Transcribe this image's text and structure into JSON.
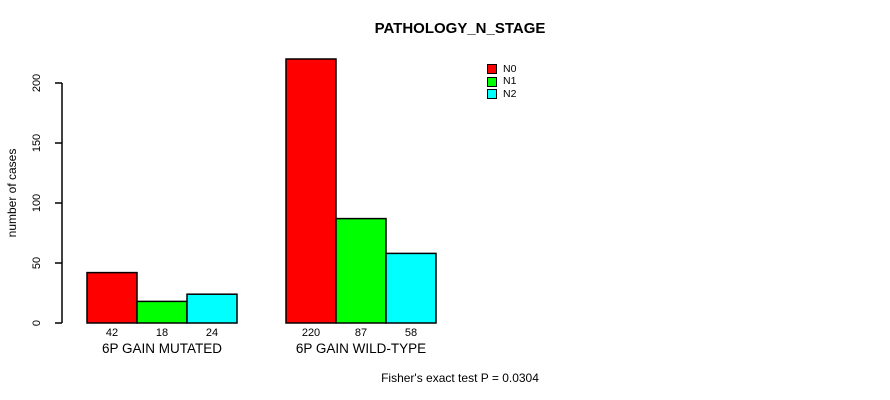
{
  "chart_data": {
    "type": "bar",
    "title": "PATHOLOGY_N_STAGE",
    "ylabel": "number of cases",
    "xlabel": "",
    "categories": [
      "6P GAIN MUTATED",
      "6P GAIN WILD-TYPE"
    ],
    "series": [
      {
        "name": "N0",
        "color": "#FF0000",
        "values": [
          42,
          220
        ]
      },
      {
        "name": "N1",
        "color": "#00FF00",
        "values": [
          18,
          87
        ]
      },
      {
        "name": "N2",
        "color": "#00FFFF",
        "values": [
          24,
          58
        ]
      }
    ],
    "bar_value_labels": [
      [
        42,
        18,
        24
      ],
      [
        220,
        87,
        58
      ]
    ],
    "yticks": [
      0,
      50,
      100,
      150,
      200
    ],
    "ylim": [
      0,
      220
    ],
    "grid": false,
    "legend_position": "top-right",
    "legend_entries": [
      "N0",
      "N1",
      "N2"
    ],
    "annotation": "Fisher's exact test P = 0.0304"
  },
  "colors": {
    "axis": "#000000",
    "text": "#000000",
    "background": "#FFFFFF",
    "n0": "#FF0000",
    "n1": "#00FF00",
    "n2": "#00FFFF"
  }
}
